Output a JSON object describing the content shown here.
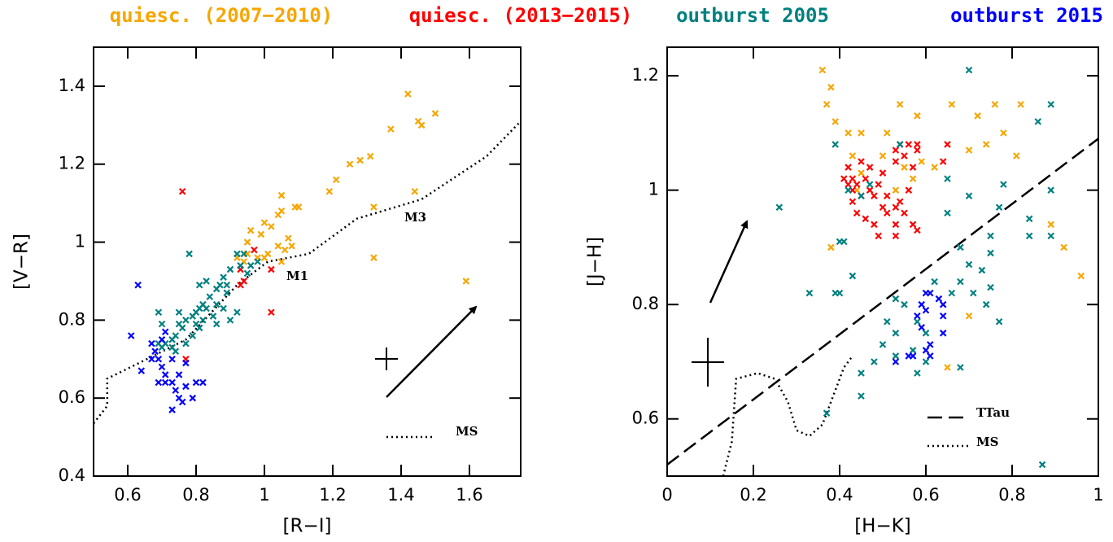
{
  "chart_data": [
    {
      "type": "scatter",
      "xlabel": "[R−I]",
      "ylabel": "[V−R]",
      "xlim": [
        0.5,
        1.75
      ],
      "ylim": [
        0.4,
        1.5
      ],
      "xticks": [
        0.6,
        0.8,
        1,
        1.2,
        1.4,
        1.6
      ],
      "yticks": [
        0.4,
        0.6,
        0.8,
        1,
        1.2,
        1.4
      ],
      "annotations": [
        "M1",
        "M3"
      ],
      "series": [
        {
          "name": "quiesc. (2007−2010)",
          "color": "#f7a600",
          "x": [
            1.42,
            1.45,
            1.5,
            1.37,
            1.46,
            1.31,
            1.28,
            1.25,
            1.21,
            1.19,
            1.44,
            1.32,
            1.32,
            1.59,
            1.05,
            1.09,
            1.1,
            1.04,
            1.05,
            1,
            1.02,
            0.96,
            0.99,
            0.95,
            1.04,
            1.06,
            1.07,
            1.01,
            1.05,
            1,
            0.98,
            0.94,
            0.92,
            0.95,
            1.08
          ],
          "y": [
            1.38,
            1.31,
            1.33,
            1.29,
            1.3,
            1.22,
            1.21,
            1.2,
            1.16,
            1.13,
            1.13,
            1.09,
            0.96,
            0.9,
            1.12,
            1.09,
            1.09,
            1.07,
            1.08,
            1.05,
            1.04,
            1.03,
            1.02,
            1,
            0.99,
            0.98,
            1.01,
            0.97,
            0.95,
            0.96,
            0.96,
            0.95,
            0.96,
            0.97,
            0.99
          ]
        },
        {
          "name": "quiesc. (2013−2015)",
          "color": "#ff0000",
          "x": [
            0.76,
            0.97,
            1.02,
            0.94,
            0.93,
            1.02,
            0.77,
            0.93
          ],
          "y": [
            1.13,
            0.98,
            0.93,
            0.9,
            0.89,
            0.82,
            0.7,
            0.93
          ]
        },
        {
          "name": "outburst 2005",
          "color": "#008080",
          "x": [
            0.78,
            0.92,
            0.94,
            0.93,
            0.9,
            0.88,
            0.87,
            0.86,
            0.89,
            0.84,
            0.82,
            0.81,
            0.83,
            0.86,
            0.8,
            0.79,
            0.82,
            0.77,
            0.75,
            0.75,
            0.76,
            0.74,
            0.79,
            0.81,
            0.73,
            0.71,
            0.73,
            0.74,
            0.7,
            0.69,
            0.77,
            0.8,
            0.85,
            0.88,
            0.9,
            0.92,
            0.95,
            0.96,
            0.98,
            0.83,
            0.81,
            0.69,
            0.7,
            0.86,
            0.89
          ],
          "y": [
            0.97,
            0.97,
            0.97,
            0.94,
            0.93,
            0.91,
            0.89,
            0.88,
            0.87,
            0.86,
            0.84,
            0.83,
            0.83,
            0.84,
            0.82,
            0.81,
            0.8,
            0.8,
            0.82,
            0.79,
            0.78,
            0.76,
            0.76,
            0.78,
            0.75,
            0.74,
            0.73,
            0.72,
            0.73,
            0.74,
            0.74,
            0.79,
            0.81,
            0.83,
            0.8,
            0.82,
            0.92,
            0.94,
            0.95,
            0.9,
            0.89,
            0.82,
            0.79,
            0.79,
            0.89
          ]
        },
        {
          "name": "outburst 2015",
          "color": "#0000ff",
          "x": [
            0.61,
            0.64,
            0.63,
            0.69,
            0.7,
            0.71,
            0.73,
            0.74,
            0.75,
            0.77,
            0.8,
            0.82,
            0.73,
            0.71,
            0.7,
            0.68,
            0.67,
            0.71,
            0.75,
            0.79,
            0.76,
            0.69,
            0.67,
            0.73,
            0.77
          ],
          "y": [
            0.76,
            0.67,
            0.89,
            0.7,
            0.68,
            0.66,
            0.64,
            0.62,
            0.6,
            0.63,
            0.64,
            0.64,
            0.57,
            0.77,
            0.75,
            0.72,
            0.7,
            0.64,
            0.66,
            0.6,
            0.59,
            0.64,
            0.74,
            0.7,
            0.69
          ]
        }
      ],
      "lines": [
        {
          "name": "MS",
          "style": "dotted",
          "color": "#000000",
          "x": [
            0.5,
            0.54,
            0.54,
            0.61,
            0.77,
            0.92,
            1.01,
            1.13,
            1.27,
            1.46,
            1.65,
            1.75
          ],
          "y": [
            0.535,
            0.58,
            0.65,
            0.68,
            0.75,
            0.89,
            0.95,
            0.97,
            1.06,
            1.11,
            1.22,
            1.31
          ]
        }
      ]
    },
    {
      "type": "scatter",
      "xlabel": "[H−K]",
      "ylabel": "[J−H]",
      "xlim": [
        0,
        1
      ],
      "ylim": [
        0.5,
        1.25
      ],
      "xticks": [
        0,
        0.2,
        0.4,
        0.6,
        0.8,
        1
      ],
      "yticks": [
        0.6,
        0.8,
        1,
        1.2
      ],
      "series": [
        {
          "color": "#f7a600",
          "x": [
            0.36,
            0.38,
            0.37,
            0.39,
            0.54,
            0.58,
            0.66,
            0.72,
            0.76,
            0.82,
            0.42,
            0.45,
            0.51,
            0.78,
            0.74,
            0.7,
            0.81,
            0.43,
            0.5,
            0.59,
            0.55,
            0.45,
            0.57,
            0.53,
            0.89,
            0.92,
            0.96,
            0.7,
            0.44,
            0.38,
            0.65,
            0.62
          ],
          "y": [
            1.21,
            1.18,
            1.15,
            1.12,
            1.15,
            1.13,
            1.15,
            1.13,
            1.15,
            1.15,
            1.1,
            1.1,
            1.1,
            1.1,
            1.08,
            1.07,
            1.06,
            1.06,
            1.06,
            1.05,
            1.04,
            1.03,
            1.02,
            1,
            0.94,
            0.9,
            0.85,
            0.78,
            1,
            0.9,
            0.69,
            1.04
          ]
        },
        {
          "color": "#ff0000",
          "x": [
            0.41,
            0.42,
            0.43,
            0.43,
            0.44,
            0.45,
            0.46,
            0.47,
            0.48,
            0.49,
            0.5,
            0.51,
            0.53,
            0.53,
            0.54,
            0.55,
            0.56,
            0.57,
            0.58,
            0.58,
            0.43,
            0.44,
            0.46,
            0.48,
            0.5,
            0.53,
            0.53,
            0.55,
            0.57,
            0.58,
            0.49,
            0.53,
            0.47,
            0.45,
            0.42,
            0.56,
            0.54,
            0.51,
            0.65,
            0.64
          ],
          "y": [
            1.02,
            1.01,
            1,
            1.02,
            1.01,
            0.99,
            1.02,
            1,
            0.99,
            1.01,
            1.03,
            0.99,
            1.05,
            1.07,
            1.08,
            1.06,
            1.08,
            1.04,
            1.08,
            1.07,
            0.98,
            0.96,
            0.95,
            0.94,
            0.97,
            0.97,
            0.94,
            0.96,
            0.94,
            0.93,
            0.92,
            0.92,
            1.04,
            1.05,
            1.04,
            1,
            0.98,
            0.96,
            1.08,
            1.05
          ]
        },
        {
          "color": "#008080",
          "x": [
            0.7,
            0.89,
            0.86,
            0.39,
            0.54,
            0.26,
            0.42,
            0.45,
            0.47,
            0.65,
            0.7,
            0.78,
            0.89,
            0.65,
            0.77,
            0.84,
            0.75,
            0.89,
            0.84,
            0.4,
            0.41,
            0.68,
            0.75,
            0.7,
            0.73,
            0.68,
            0.71,
            0.75,
            0.43,
            0.39,
            0.4,
            0.33,
            0.53,
            0.55,
            0.51,
            0.58,
            0.6,
            0.53,
            0.5,
            0.57,
            0.6,
            0.58,
            0.53,
            0.48,
            0.45,
            0.45,
            0.37,
            0.68,
            0.77,
            0.74,
            0.66,
            0.87,
            0.62
          ],
          "y": [
            1.21,
            1.15,
            1.12,
            1.08,
            1.08,
            0.97,
            1,
            0.99,
            1.01,
            1.02,
            0.99,
            1.01,
            1,
            0.96,
            0.97,
            0.95,
            0.92,
            0.92,
            0.92,
            0.91,
            0.91,
            0.9,
            0.89,
            0.87,
            0.86,
            0.84,
            0.82,
            0.83,
            0.85,
            0.82,
            0.82,
            0.82,
            0.81,
            0.8,
            0.77,
            0.77,
            0.75,
            0.75,
            0.73,
            0.72,
            0.7,
            0.68,
            0.71,
            0.7,
            0.68,
            0.64,
            0.61,
            0.69,
            0.77,
            0.8,
            0.82,
            0.52,
            0.84
          ]
        },
        {
          "color": "#0000ff",
          "x": [
            0.6,
            0.61,
            0.63,
            0.64,
            0.59,
            0.58,
            0.6,
            0.64,
            0.59,
            0.64,
            0.56,
            0.57,
            0.6,
            0.61,
            0.53,
            0.61
          ],
          "y": [
            0.82,
            0.82,
            0.81,
            0.8,
            0.8,
            0.78,
            0.79,
            0.78,
            0.76,
            0.75,
            0.71,
            0.71,
            0.72,
            0.71,
            0.7,
            0.73
          ]
        }
      ],
      "lines": [
        {
          "name": "TTau",
          "style": "dashed",
          "color": "#000000",
          "x": [
            0,
            1
          ],
          "y": [
            0.52,
            1.09
          ]
        },
        {
          "name": "MS",
          "style": "dotted",
          "color": "#000000",
          "x": [
            0.13,
            0.15,
            0.16,
            0.21,
            0.25,
            0.28,
            0.3,
            0.33,
            0.36,
            0.39,
            0.41,
            0.43
          ],
          "y": [
            0.5,
            0.56,
            0.67,
            0.68,
            0.67,
            0.63,
            0.58,
            0.57,
            0.59,
            0.65,
            0.69,
            0.71
          ]
        }
      ]
    }
  ]
}
